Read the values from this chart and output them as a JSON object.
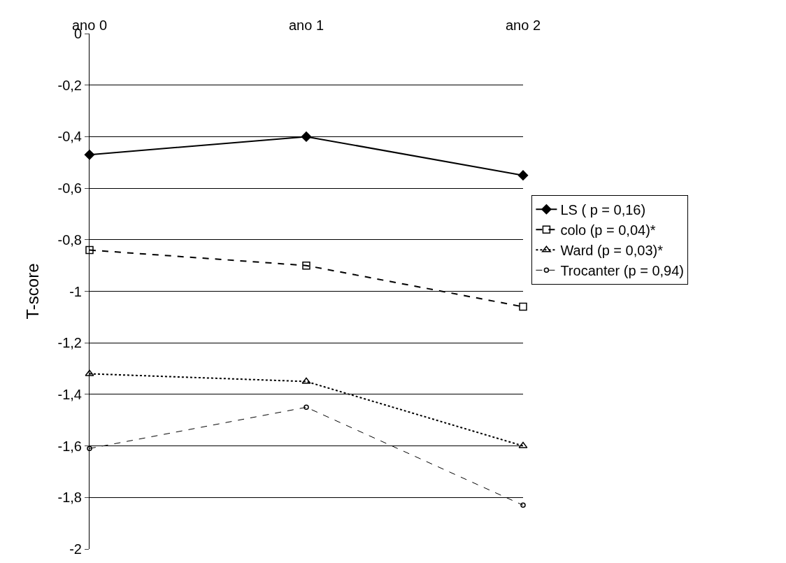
{
  "chart_data": {
    "type": "line",
    "ylabel": "T-score",
    "categories": [
      "ano 0",
      "ano 1",
      "ano 2"
    ],
    "series": [
      {
        "name": "LS ( p = 0,16)",
        "color": "#000000",
        "values": [
          -0.47,
          -0.4,
          -0.55
        ],
        "marker": "diamond",
        "line_style": "solid"
      },
      {
        "name": "colo (p = 0,04)*",
        "color": "#000000",
        "values": [
          -0.84,
          -0.9,
          -1.06
        ],
        "marker": "square",
        "line_style": "dashed"
      },
      {
        "name": "Ward (p = 0,03)*",
        "color": "#000000",
        "values": [
          -1.32,
          -1.35,
          -1.6
        ],
        "marker": "triangle",
        "line_style": "dotted"
      },
      {
        "name": "Trocanter (p = 0,94)",
        "color": "#000000",
        "values": [
          -1.61,
          -1.45,
          -1.83
        ],
        "marker": "circle",
        "line_style": "dashed"
      }
    ],
    "ylim": [
      -2,
      0
    ],
    "yticks": [
      {
        "value": 0,
        "label": "0"
      },
      {
        "value": -0.2,
        "label": "-0,2"
      },
      {
        "value": -0.4,
        "label": "-0,4"
      },
      {
        "value": -0.6,
        "label": "-0,6"
      },
      {
        "value": -0.8,
        "label": "-0,8"
      },
      {
        "value": -1,
        "label": "-1"
      },
      {
        "value": -1.2,
        "label": "-1,2"
      },
      {
        "value": -1.4,
        "label": "-1,4"
      },
      {
        "value": -1.6,
        "label": "-1,6"
      },
      {
        "value": -1.8,
        "label": "-1,8"
      },
      {
        "value": -2,
        "label": "-2"
      }
    ],
    "grid": "y",
    "legend": "right"
  }
}
